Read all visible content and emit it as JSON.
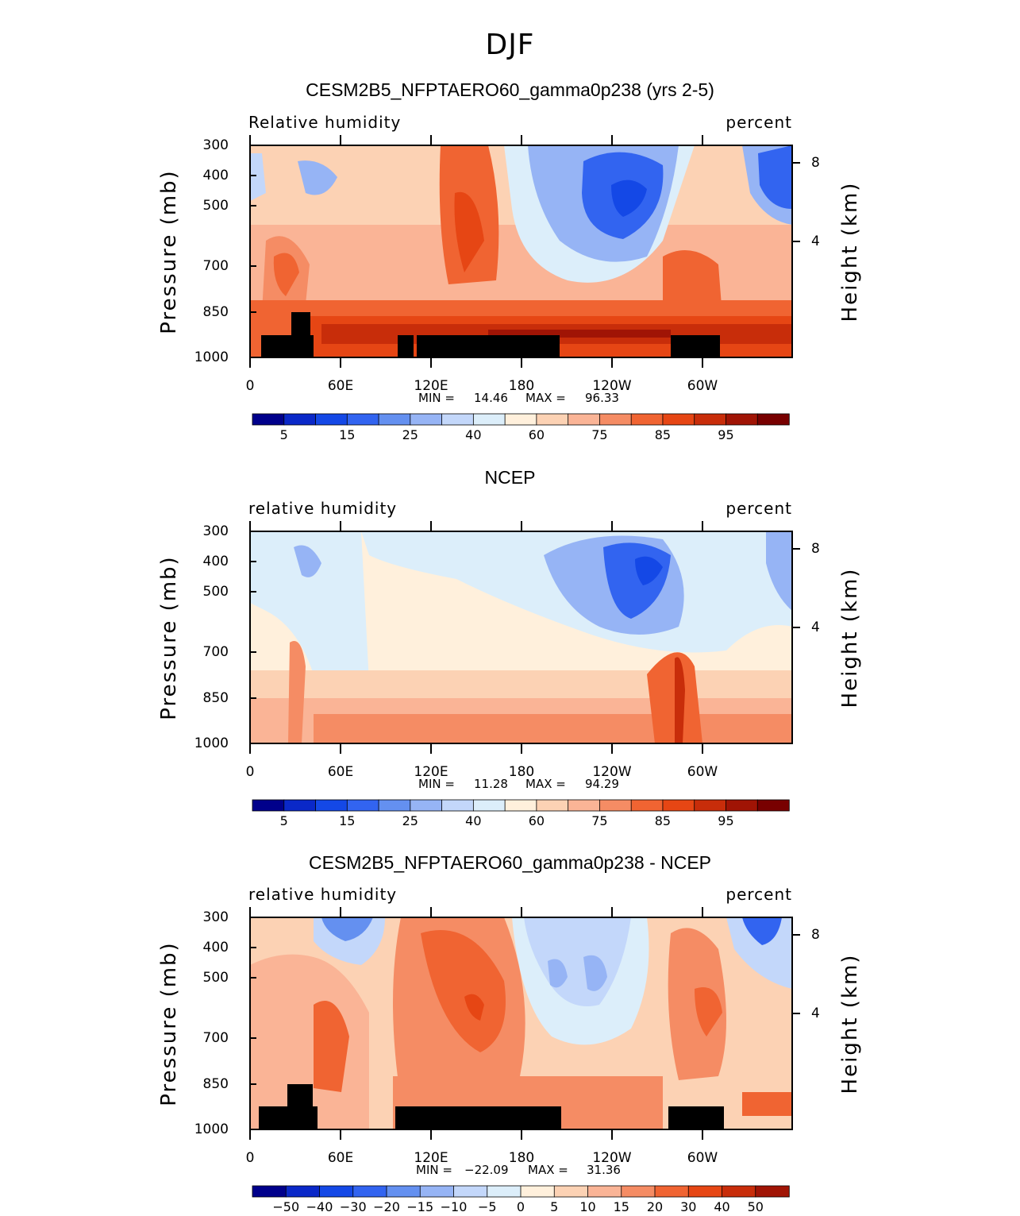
{
  "main_title": "DJF",
  "chart_data": [
    {
      "type": "heatmap",
      "title": "CESM2B5_NFPTAERO60_gamma0p238 (yrs 2-5)",
      "variable": "Relative humidity",
      "units": "percent",
      "ylabel": "Pressure (mb)",
      "y2label": "Height (km)",
      "pressure_ticks": [
        "300",
        "400",
        "500",
        "700",
        "850",
        "1000"
      ],
      "height_ticks": [
        "8",
        "4"
      ],
      "x_ticks": [
        "0",
        "60E",
        "120E",
        "180",
        "120W",
        "60W"
      ],
      "min_label": "MIN =",
      "min_value": "14.46",
      "max_label": "MAX =",
      "max_value": "96.33",
      "colorbar_ticks": [
        "5",
        "15",
        "25",
        "40",
        "60",
        "75",
        "85",
        "95"
      ],
      "colorbar_colors": [
        "#00008b",
        "#0a28c8",
        "#1448e6",
        "#3264f0",
        "#6490f0",
        "#96b4f5",
        "#c3d7fa",
        "#dceefa",
        "#fff0dc",
        "#fcd2b4",
        "#fab496",
        "#f58c64",
        "#f06432",
        "#e64614",
        "#c82d0a",
        "#a01405",
        "#780000"
      ]
    },
    {
      "type": "heatmap",
      "title": "NCEP",
      "variable": "relative humidity",
      "units": "percent",
      "ylabel": "Pressure (mb)",
      "y2label": "Height (km)",
      "pressure_ticks": [
        "300",
        "400",
        "500",
        "700",
        "850",
        "1000"
      ],
      "height_ticks": [
        "8",
        "4"
      ],
      "x_ticks": [
        "0",
        "60E",
        "120E",
        "180",
        "120W",
        "60W"
      ],
      "min_label": "MIN =",
      "min_value": "11.28",
      "max_label": "MAX =",
      "max_value": "94.29",
      "colorbar_ticks": [
        "5",
        "15",
        "25",
        "40",
        "60",
        "75",
        "85",
        "95"
      ],
      "colorbar_colors": [
        "#00008b",
        "#0a28c8",
        "#1448e6",
        "#3264f0",
        "#6490f0",
        "#96b4f5",
        "#c3d7fa",
        "#dceefa",
        "#fff0dc",
        "#fcd2b4",
        "#fab496",
        "#f58c64",
        "#f06432",
        "#e64614",
        "#c82d0a",
        "#a01405",
        "#780000"
      ]
    },
    {
      "type": "heatmap",
      "title": "CESM2B5_NFPTAERO60_gamma0p238 - NCEP",
      "variable": "relative humidity",
      "units": "percent",
      "ylabel": "Pressure (mb)",
      "y2label": "Height (km)",
      "pressure_ticks": [
        "300",
        "400",
        "500",
        "700",
        "850",
        "1000"
      ],
      "height_ticks": [
        "8",
        "4"
      ],
      "x_ticks": [
        "0",
        "60E",
        "120E",
        "180",
        "120W",
        "60W"
      ],
      "min_label": "MIN =",
      "min_value": "−22.09",
      "max_label": "MAX =",
      "max_value": "31.36",
      "colorbar_ticks": [
        "−50",
        "−40",
        "−30",
        "−20",
        "−15",
        "−10",
        "−5",
        "0",
        "5",
        "10",
        "15",
        "20",
        "30",
        "40",
        "50"
      ],
      "colorbar_colors": [
        "#00008b",
        "#0a28c8",
        "#1448e6",
        "#3264f0",
        "#6490f0",
        "#96b4f5",
        "#c3d7fa",
        "#dceefa",
        "#fff0dc",
        "#fcd2b4",
        "#fab496",
        "#f58c64",
        "#f06432",
        "#e64614",
        "#c82d0a",
        "#a01405"
      ]
    }
  ]
}
